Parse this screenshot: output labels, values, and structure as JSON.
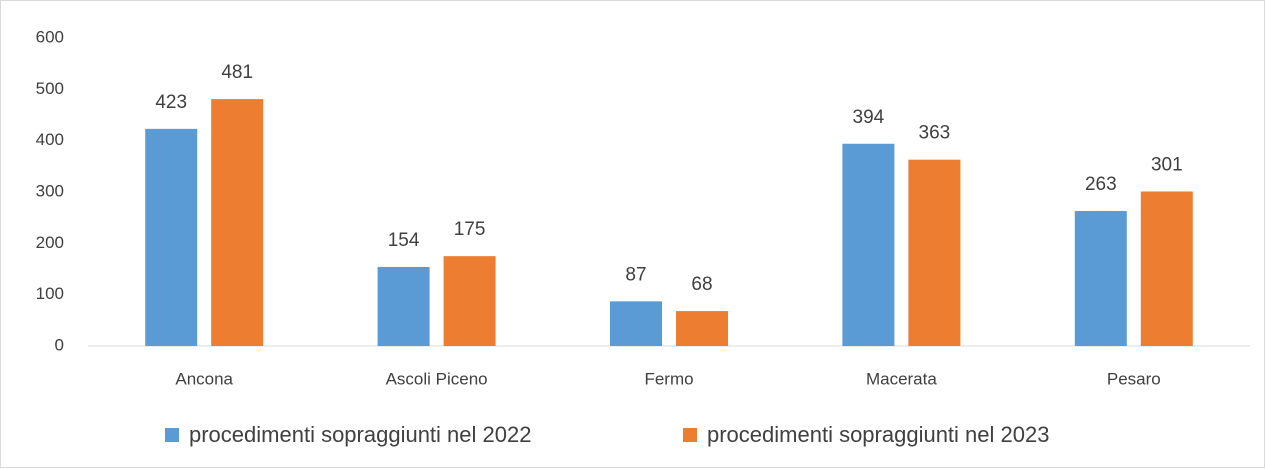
{
  "chart_data": {
    "type": "bar",
    "categories": [
      "Ancona",
      "Ascoli Piceno",
      "Fermo",
      "Macerata",
      "Pesaro"
    ],
    "series": [
      {
        "name": "procedimenti sopraggiunti nel 2022",
        "color": "#5b9bd5",
        "values": [
          423,
          154,
          87,
          394,
          263
        ]
      },
      {
        "name": "procedimenti sopraggiunti nel 2023",
        "color": "#ed7d31",
        "values": [
          481,
          175,
          68,
          363,
          301
        ]
      }
    ],
    "ylim": [
      0,
      600
    ],
    "yticks": [
      0,
      100,
      200,
      300,
      400,
      500,
      600
    ],
    "grid": false,
    "legend": "bottom"
  }
}
